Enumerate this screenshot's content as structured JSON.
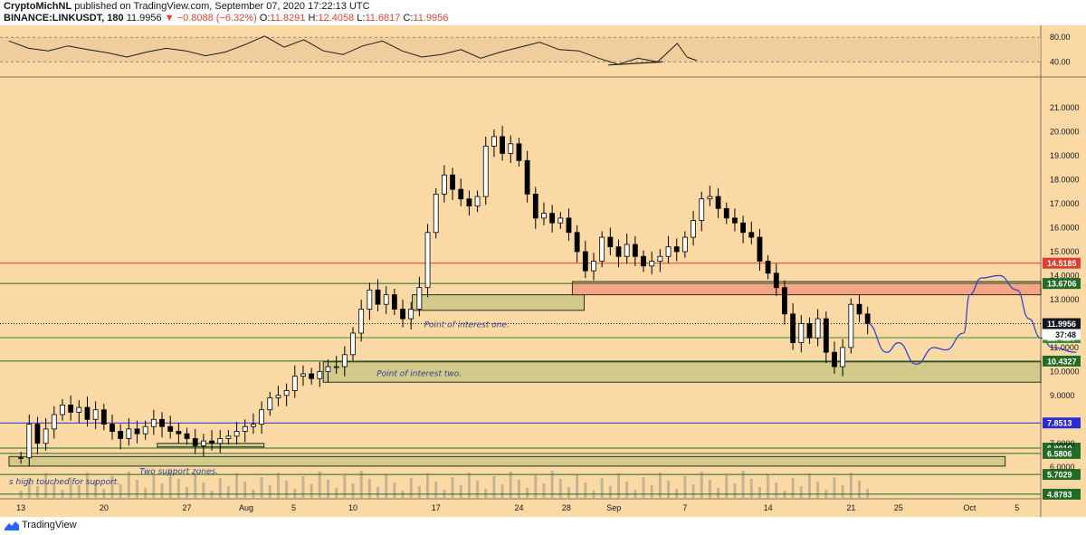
{
  "header": {
    "author": "CryptoMichNL",
    "published_text": "published on TradingView.com, September 07, 2020 17:22:13 UTC",
    "symbol": "BINANCE:LINKUSDT, 180",
    "last": "11.9956",
    "change": "▼ −0.8088 (−6.32%)",
    "o_label": "O:",
    "o_value": "11.8291",
    "h_label": "H:",
    "h_value": "12.4058",
    "l_label": "L:",
    "l_value": "11.6817",
    "c_label": "C:",
    "c_value": "11.9956"
  },
  "footer": {
    "brand": "TradingView",
    "logo_icon": "tradingview-logo-icon"
  },
  "colors": {
    "background": "#fbd9a5",
    "candle": "#000000",
    "zone_fill": "#d3c98a",
    "zone_red": "#f4a585",
    "blue_path": "#2a3bd6",
    "red_line": "#e03c31",
    "blue_line": "#2a2ad6",
    "green_line": "#6c9b3f"
  },
  "chart_data": [
    {
      "type": "line",
      "title": "RSI",
      "y_ticks": [
        "80.00",
        "40.00"
      ],
      "ylim": [
        20,
        95
      ],
      "points": [
        [
          0,
          74
        ],
        [
          4,
          62
        ],
        [
          8,
          58
        ],
        [
          12,
          66
        ],
        [
          16,
          60
        ],
        [
          20,
          55
        ],
        [
          24,
          48
        ],
        [
          28,
          56
        ],
        [
          32,
          62
        ],
        [
          36,
          58
        ],
        [
          40,
          50
        ],
        [
          44,
          56
        ],
        [
          48,
          68
        ],
        [
          52,
          82
        ],
        [
          56,
          64
        ],
        [
          60,
          76
        ],
        [
          64,
          58
        ],
        [
          68,
          52
        ],
        [
          72,
          66
        ],
        [
          76,
          74
        ],
        [
          80,
          58
        ],
        [
          84,
          48
        ],
        [
          88,
          52
        ],
        [
          92,
          60
        ],
        [
          96,
          46
        ],
        [
          100,
          56
        ],
        [
          104,
          64
        ],
        [
          108,
          72
        ],
        [
          112,
          60
        ],
        [
          116,
          58
        ],
        [
          120,
          46
        ],
        [
          124,
          36
        ],
        [
          128,
          46
        ],
        [
          132,
          40
        ],
        [
          136,
          70
        ],
        [
          138,
          48
        ],
        [
          140,
          42
        ]
      ],
      "band": [
        40,
        80
      ],
      "trendline": [
        [
          122,
          35
        ],
        [
          133,
          40
        ]
      ]
    },
    {
      "type": "candlestick",
      "symbol": "LINKUSDT",
      "interval": "180",
      "exchange": "BINANCE",
      "x_tick_labels": [
        "13",
        "20",
        "27",
        "Aug",
        "5",
        "10",
        "17",
        "24",
        "28",
        "Sep",
        "7",
        "14",
        "21",
        "25",
        "Oct",
        "5"
      ],
      "x_tick_days": [
        0,
        7,
        14,
        19,
        23,
        28,
        35,
        42,
        46,
        50,
        56,
        63,
        70,
        74,
        80,
        84
      ],
      "y_ticks": [
        "21.0000",
        "20.0000",
        "19.0000",
        "18.0000",
        "17.0000",
        "16.0000",
        "15.0000",
        "14.0000",
        "13.0000",
        "11.0000",
        "10.0000",
        "9.0000",
        "7.0000",
        "6.0000"
      ],
      "ylim": [
        4.8,
        22.1
      ],
      "xlim": [
        -1,
        86
      ],
      "last_price": "11.9956",
      "last_price_countdown": "37:48",
      "closes": [
        [
          0,
          6.4
        ],
        [
          0.7,
          7.8
        ],
        [
          1.4,
          7.0
        ],
        [
          2.1,
          7.6
        ],
        [
          2.8,
          8.2
        ],
        [
          3.5,
          8.6
        ],
        [
          4.2,
          8.3
        ],
        [
          4.9,
          8.5
        ],
        [
          5.6,
          8.0
        ],
        [
          6.3,
          8.4
        ],
        [
          7,
          7.8
        ],
        [
          7.7,
          7.5
        ],
        [
          8.4,
          7.2
        ],
        [
          9.1,
          7.6
        ],
        [
          9.8,
          7.4
        ],
        [
          10.5,
          7.7
        ],
        [
          11.2,
          8.0
        ],
        [
          11.9,
          7.7
        ],
        [
          12.6,
          7.5
        ],
        [
          13.3,
          7.4
        ],
        [
          14,
          7.2
        ],
        [
          14.7,
          6.9
        ],
        [
          15.4,
          7.1
        ],
        [
          16.1,
          7.0
        ],
        [
          16.8,
          7.2
        ],
        [
          17.5,
          7.3
        ],
        [
          18.2,
          7.5
        ],
        [
          18.9,
          7.7
        ],
        [
          19.6,
          7.8
        ],
        [
          20.3,
          8.4
        ],
        [
          21,
          8.9
        ],
        [
          21.7,
          9.0
        ],
        [
          22.4,
          9.2
        ],
        [
          23.1,
          9.8
        ],
        [
          23.8,
          9.9
        ],
        [
          24.5,
          9.7
        ],
        [
          25.2,
          10.0
        ],
        [
          25.9,
          10.2
        ],
        [
          26.6,
          10.2
        ],
        [
          27.3,
          10.7
        ],
        [
          28,
          11.6
        ],
        [
          28.7,
          12.6
        ],
        [
          29.4,
          13.4
        ],
        [
          30.1,
          12.8
        ],
        [
          30.8,
          13.2
        ],
        [
          31.5,
          12.6
        ],
        [
          32.2,
          12.2
        ],
        [
          32.9,
          12.6
        ],
        [
          33.6,
          13.5
        ],
        [
          34.3,
          15.8
        ],
        [
          35,
          17.4
        ],
        [
          35.7,
          18.2
        ],
        [
          36.4,
          17.6
        ],
        [
          37.1,
          17.2
        ],
        [
          37.8,
          16.9
        ],
        [
          38.5,
          17.3
        ],
        [
          39.2,
          19.4
        ],
        [
          39.9,
          19.8
        ],
        [
          40.6,
          19.1
        ],
        [
          41.3,
          19.5
        ],
        [
          42,
          18.8
        ],
        [
          42.7,
          17.4
        ],
        [
          43.4,
          16.4
        ],
        [
          44.1,
          16.6
        ],
        [
          44.8,
          16.2
        ],
        [
          45.5,
          16.4
        ],
        [
          46.2,
          15.8
        ],
        [
          46.9,
          15.0
        ],
        [
          47.6,
          14.2
        ],
        [
          48.3,
          14.6
        ],
        [
          49,
          15.6
        ],
        [
          49.7,
          15.2
        ],
        [
          50.4,
          14.8
        ],
        [
          51.1,
          15.3
        ],
        [
          51.8,
          14.8
        ],
        [
          52.5,
          14.4
        ],
        [
          53.2,
          14.6
        ],
        [
          53.9,
          14.8
        ],
        [
          54.6,
          15.2
        ],
        [
          55.3,
          15.0
        ],
        [
          56,
          15.6
        ],
        [
          56.7,
          16.3
        ],
        [
          57.4,
          17.2
        ],
        [
          58.1,
          17.3
        ],
        [
          58.8,
          16.8
        ],
        [
          59.5,
          16.4
        ],
        [
          60.2,
          16.2
        ],
        [
          60.9,
          15.8
        ],
        [
          61.6,
          15.6
        ],
        [
          62.3,
          14.6
        ],
        [
          63,
          14.1
        ],
        [
          63.7,
          13.5
        ],
        [
          64.4,
          12.4
        ],
        [
          65.1,
          11.2
        ],
        [
          65.8,
          12.0
        ],
        [
          66.5,
          11.4
        ],
        [
          67.2,
          12.2
        ],
        [
          67.9,
          10.8
        ],
        [
          68.6,
          10.2
        ],
        [
          69.3,
          11.0
        ],
        [
          70,
          12.8
        ],
        [
          70.7,
          12.4
        ],
        [
          71.4,
          12.0
        ]
      ],
      "horizontal_levels": [
        {
          "label": "14.5185",
          "value": 14.5185,
          "color": "#e03c31"
        },
        {
          "label": "13.6706",
          "value": 13.6706,
          "color": "#216b24"
        },
        {
          "label": "11.9956",
          "value": 11.9956,
          "color": "#131722"
        },
        {
          "label": "11.4110",
          "value": 11.411,
          "color": "#3d8b3d"
        },
        {
          "label": "10.4327",
          "value": 10.4327,
          "color": "#216b24"
        },
        {
          "label": "7.8513",
          "value": 7.8513,
          "color": "#2a2ad6"
        },
        {
          "label": "6.8010",
          "value": 6.801,
          "color": "#216b24"
        },
        {
          "label": "6.5806",
          "value": 6.5806,
          "color": "#216b24"
        },
        {
          "label": "5.7029",
          "value": 5.7029,
          "color": "#216b24"
        },
        {
          "label": "4.8783",
          "value": 4.8783,
          "color": "#216b24"
        }
      ],
      "zones": [
        {
          "kind": "support",
          "x0": 33,
          "x1": 47.5,
          "y0": 12.55,
          "y1": 13.2
        },
        {
          "kind": "resistance",
          "x0": 46.5,
          "x1": 86,
          "y0": 13.2,
          "y1": 13.75
        },
        {
          "kind": "support",
          "x0": 25.5,
          "x1": 86,
          "y0": 9.55,
          "y1": 10.4
        },
        {
          "kind": "support",
          "x0": -1,
          "x1": 83,
          "y0": 6.05,
          "y1": 6.45
        },
        {
          "kind": "support",
          "x0": 11.5,
          "x1": 20.5,
          "y0": 6.85,
          "y1": 7.0
        }
      ],
      "projection": [
        [
          71.4,
          12.0
        ],
        [
          73,
          10.8
        ],
        [
          74,
          11.2
        ],
        [
          75.5,
          10.3
        ],
        [
          77,
          11.0
        ],
        [
          78,
          10.9
        ],
        [
          79.5,
          11.6
        ],
        [
          80,
          13.2
        ],
        [
          81,
          13.9
        ],
        [
          82.5,
          14.0
        ],
        [
          84,
          13.4
        ],
        [
          85,
          12.2
        ],
        [
          86,
          11.4
        ],
        [
          87,
          11.0
        ],
        [
          89,
          10.8
        ]
      ],
      "annotations": [
        {
          "text": "Point of interest one.",
          "x": 34,
          "y": 11.85
        },
        {
          "text": "Point of interest two.",
          "x": 30,
          "y": 9.8
        },
        {
          "text": "Two support zones.",
          "x": 10,
          "y": 5.72
        },
        {
          "text": "s high touched for support.",
          "x": -1,
          "y": 5.3
        }
      ]
    }
  ]
}
